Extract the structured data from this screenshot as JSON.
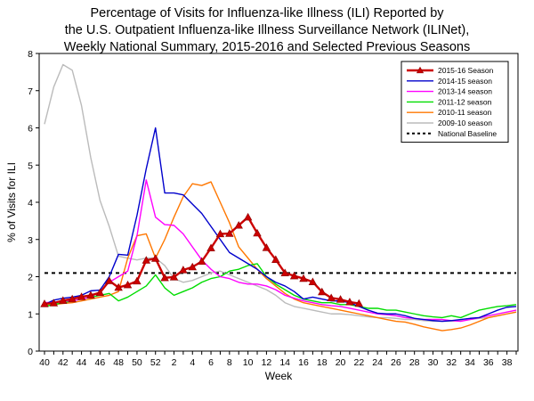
{
  "chart_data": {
    "type": "line",
    "title": "Percentage of Visits for Influenza-like Illness (ILI) Reported by\nthe U.S. Outpatient Influenza-like Illness Surveillance Network (ILINet),\nWeekly National Summary, 2015-2016 and Selected Previous Seasons",
    "xlabel": "Week",
    "ylabel": "% of Visits for ILI",
    "ylim": [
      0,
      8
    ],
    "yticks": [
      "0",
      "1",
      "2",
      "3",
      "4",
      "5",
      "6",
      "7",
      "8"
    ],
    "x": [
      "40",
      "41",
      "42",
      "43",
      "44",
      "45",
      "46",
      "47",
      "48",
      "49",
      "50",
      "51",
      "52",
      "1",
      "2",
      "3",
      "4",
      "5",
      "6",
      "7",
      "8",
      "9",
      "10",
      "11",
      "12",
      "13",
      "14",
      "15",
      "16",
      "17",
      "18",
      "19",
      "20",
      "21",
      "22",
      "23",
      "24",
      "25",
      "26",
      "27",
      "28",
      "29",
      "30",
      "31",
      "32",
      "33",
      "34",
      "35",
      "36",
      "37",
      "38",
      "39"
    ],
    "xtick_labels": [
      "40",
      "42",
      "44",
      "46",
      "48",
      "50",
      "52",
      "2",
      "4",
      "6",
      "8",
      "10",
      "12",
      "14",
      "16",
      "18",
      "20",
      "22",
      "24",
      "26",
      "28",
      "30",
      "32",
      "34",
      "36",
      "38"
    ],
    "grid": false,
    "legend_position": "top-right",
    "series": [
      {
        "name": "2015-16 Season",
        "color": "#cc0000",
        "marker": "triangle",
        "values": [
          1.27,
          1.29,
          1.36,
          1.4,
          1.46,
          1.5,
          1.57,
          1.89,
          1.71,
          1.78,
          1.88,
          2.44,
          2.49,
          1.97,
          1.99,
          2.18,
          2.26,
          2.41,
          2.77,
          3.15,
          3.16,
          3.38,
          3.6,
          3.17,
          2.78,
          2.46,
          2.1,
          2.02,
          1.95,
          1.86,
          1.59,
          1.43,
          1.39,
          1.32,
          1.28,
          null,
          null,
          null,
          null,
          null,
          null,
          null,
          null,
          null,
          null,
          null,
          null,
          null,
          null,
          null,
          null,
          null
        ]
      },
      {
        "name": "2014-15 season",
        "color": "#0000cc",
        "marker": "none",
        "values": [
          1.25,
          1.37,
          1.42,
          1.45,
          1.5,
          1.62,
          1.64,
          2.0,
          2.6,
          2.58,
          3.65,
          4.9,
          6.0,
          4.25,
          4.25,
          4.2,
          3.95,
          3.7,
          3.35,
          3.0,
          2.65,
          2.5,
          2.35,
          2.2,
          2.0,
          1.85,
          1.75,
          1.6,
          1.4,
          1.45,
          1.4,
          1.35,
          1.35,
          1.3,
          1.2,
          1.1,
          1.02,
          1.0,
          1.0,
          0.95,
          0.88,
          0.85,
          0.82,
          0.8,
          0.82,
          0.85,
          0.88,
          0.9,
          1.0,
          1.1,
          1.18,
          1.2
        ]
      },
      {
        "name": "2013-14 season",
        "color": "#ff00ff",
        "marker": "none",
        "values": [
          1.3,
          1.32,
          1.35,
          1.35,
          1.4,
          1.45,
          1.6,
          1.85,
          2.0,
          2.15,
          3.1,
          4.6,
          3.6,
          3.4,
          3.38,
          3.15,
          2.8,
          2.45,
          2.2,
          2.0,
          1.95,
          1.85,
          1.8,
          1.8,
          1.75,
          1.65,
          1.5,
          1.42,
          1.35,
          1.3,
          1.25,
          1.22,
          1.2,
          1.15,
          1.1,
          1.05,
          1.0,
          0.98,
          0.95,
          0.9,
          0.88,
          0.85,
          0.85,
          0.85,
          0.82,
          0.8,
          0.85,
          0.9,
          0.95,
          1.0,
          1.05,
          1.1
        ]
      },
      {
        "name": "2011-12 season",
        "color": "#00dd00",
        "marker": "none",
        "values": [
          1.2,
          1.25,
          1.3,
          1.35,
          1.4,
          1.45,
          1.5,
          1.55,
          1.35,
          1.45,
          1.6,
          1.75,
          2.05,
          1.7,
          1.5,
          1.6,
          1.7,
          1.85,
          1.95,
          2.0,
          2.15,
          2.2,
          2.3,
          2.35,
          2.0,
          1.8,
          1.65,
          1.5,
          1.4,
          1.35,
          1.3,
          1.3,
          1.25,
          1.25,
          1.2,
          1.15,
          1.15,
          1.1,
          1.1,
          1.05,
          1.0,
          0.95,
          0.92,
          0.9,
          0.95,
          0.9,
          1.0,
          1.1,
          1.15,
          1.2,
          1.22,
          1.25
        ]
      },
      {
        "name": "2010-11 season",
        "color": "#ff7700",
        "marker": "none",
        "values": [
          1.22,
          1.25,
          1.28,
          1.3,
          1.35,
          1.4,
          1.45,
          1.5,
          1.6,
          2.5,
          3.1,
          3.15,
          2.5,
          3.0,
          3.6,
          4.15,
          4.5,
          4.45,
          4.55,
          4.0,
          3.45,
          2.8,
          2.5,
          2.2,
          1.95,
          1.75,
          1.55,
          1.4,
          1.3,
          1.25,
          1.2,
          1.15,
          1.1,
          1.05,
          1.0,
          0.95,
          0.9,
          0.85,
          0.8,
          0.78,
          0.72,
          0.65,
          0.6,
          0.55,
          0.58,
          0.62,
          0.7,
          0.8,
          0.9,
          0.95,
          1.0,
          1.05
        ]
      },
      {
        "name": "2009-10 season",
        "color": "#bbbbbb",
        "marker": "none",
        "values": [
          6.1,
          7.1,
          7.7,
          7.55,
          6.6,
          5.2,
          4.05,
          3.35,
          2.55,
          2.5,
          2.45,
          2.5,
          2.5,
          2.3,
          1.95,
          1.85,
          1.9,
          2.0,
          2.1,
          2.15,
          2.05,
          1.95,
          1.85,
          1.75,
          1.65,
          1.5,
          1.3,
          1.2,
          1.15,
          1.1,
          1.05,
          1.0,
          1.0,
          0.98,
          0.95,
          0.92,
          0.9,
          0.9,
          0.88,
          0.85,
          0.85,
          0.82,
          0.8,
          0.8,
          0.8,
          0.82,
          0.85,
          0.88,
          0.9,
          0.95,
          1.0,
          1.05
        ]
      },
      {
        "name": "National Baseline",
        "color": "#000000",
        "marker": "none",
        "dashed": true,
        "values": [
          2.1,
          2.1,
          2.1,
          2.1,
          2.1,
          2.1,
          2.1,
          2.1,
          2.1,
          2.1,
          2.1,
          2.1,
          2.1,
          2.1,
          2.1,
          2.1,
          2.1,
          2.1,
          2.1,
          2.1,
          2.1,
          2.1,
          2.1,
          2.1,
          2.1,
          2.1,
          2.1,
          2.1,
          2.1,
          2.1,
          2.1,
          2.1,
          2.1,
          2.1,
          2.1,
          2.1,
          2.1,
          2.1,
          2.1,
          2.1,
          2.1,
          2.1,
          2.1,
          2.1,
          2.1,
          2.1,
          2.1,
          2.1,
          2.1,
          2.1,
          2.1,
          2.1
        ]
      }
    ]
  }
}
